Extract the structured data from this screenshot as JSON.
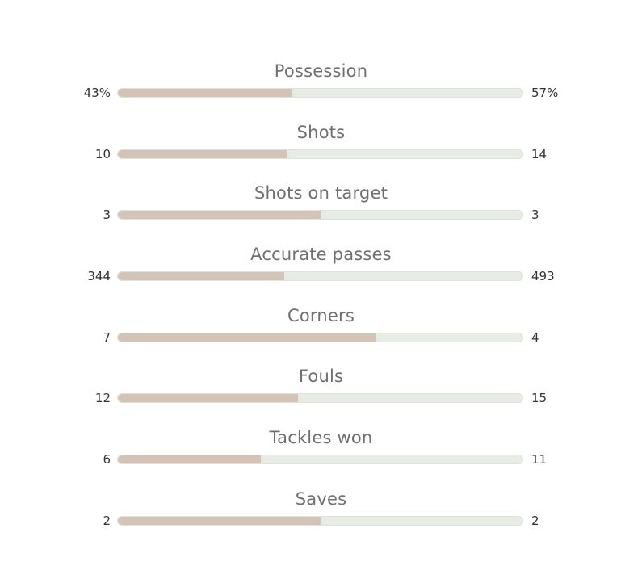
{
  "colors": {
    "home_fill": "#d4c4b6",
    "away_track": "#e7ede5",
    "label": "#6f6f6f",
    "value": "#333333"
  },
  "stats": [
    {
      "label": "Possession",
      "home": "43%",
      "away": "57%",
      "home_share": 0.43
    },
    {
      "label": "Shots",
      "home": "10",
      "away": "14",
      "home_share": 0.4167
    },
    {
      "label": "Shots on target",
      "home": "3",
      "away": "3",
      "home_share": 0.5
    },
    {
      "label": "Accurate passes",
      "home": "344",
      "away": "493",
      "home_share": 0.411
    },
    {
      "label": "Corners",
      "home": "7",
      "away": "4",
      "home_share": 0.6364
    },
    {
      "label": "Fouls",
      "home": "12",
      "away": "15",
      "home_share": 0.4444
    },
    {
      "label": "Tackles won",
      "home": "6",
      "away": "11",
      "home_share": 0.3529
    },
    {
      "label": "Saves",
      "home": "2",
      "away": "2",
      "home_share": 0.5
    }
  ]
}
